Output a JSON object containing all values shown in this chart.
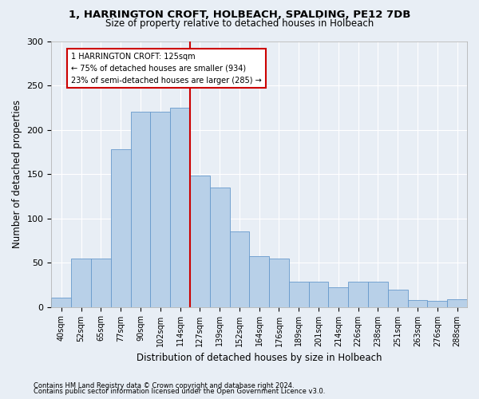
{
  "title1": "1, HARRINGTON CROFT, HOLBEACH, SPALDING, PE12 7DB",
  "title2": "Size of property relative to detached houses in Holbeach",
  "xlabel": "Distribution of detached houses by size in Holbeach",
  "ylabel": "Number of detached properties",
  "footnote1": "Contains HM Land Registry data © Crown copyright and database right 2024.",
  "footnote2": "Contains public sector information licensed under the Open Government Licence v3.0.",
  "bin_labels": [
    "40sqm",
    "52sqm",
    "65sqm",
    "77sqm",
    "90sqm",
    "102sqm",
    "114sqm",
    "127sqm",
    "139sqm",
    "152sqm",
    "164sqm",
    "176sqm",
    "189sqm",
    "201sqm",
    "214sqm",
    "226sqm",
    "238sqm",
    "251sqm",
    "263sqm",
    "276sqm",
    "288sqm"
  ],
  "bar_values": [
    10,
    55,
    55,
    178,
    220,
    220,
    225,
    148,
    135,
    85,
    57,
    55,
    28,
    28,
    22,
    28,
    28,
    19,
    8,
    7,
    9
  ],
  "bar_color": "#b8d0e8",
  "bar_edge_color": "#6699cc",
  "ylim": [
    0,
    300
  ],
  "yticks": [
    0,
    50,
    100,
    150,
    200,
    250,
    300
  ],
  "property_line_color": "#cc0000",
  "annotation_line1": "1 HARRINGTON CROFT: 125sqm",
  "annotation_line2": "← 75% of detached houses are smaller (934)",
  "annotation_line3": "23% of semi-detached houses are larger (285) →",
  "annotation_box_color": "#ffffff",
  "annotation_box_edge": "#cc0000",
  "bg_color": "#e8eef5",
  "plot_bg_color": "#e8eef5",
  "grid_color": "#ffffff"
}
